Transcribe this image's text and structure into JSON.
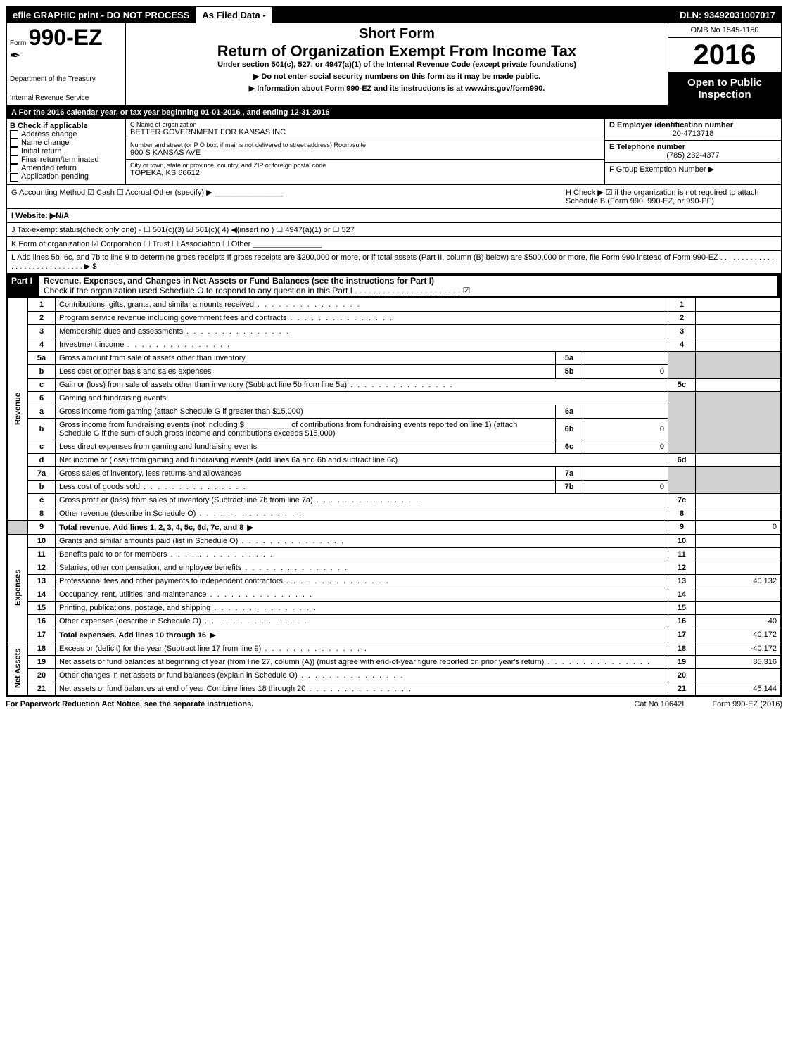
{
  "top_strip": {
    "left": "efile GRAPHIC print - DO NOT PROCESS",
    "mid": "As Filed Data -",
    "right": "DLN: 93492031007017"
  },
  "header": {
    "form_prefix": "Form",
    "form_number": "990-EZ",
    "dept1": "Department of the Treasury",
    "dept2": "Internal Revenue Service",
    "short_form": "Short Form",
    "main_title": "Return of Organization Exempt From Income Tax",
    "sub": "Under section 501(c), 527, or 4947(a)(1) of the Internal Revenue Code (except private foundations)",
    "sub2": "▶ Do not enter social security numbers on this form as it may be made public.",
    "sub3": "▶ Information about Form 990-EZ and its instructions is at www.irs.gov/form990.",
    "omb": "OMB No 1545-1150",
    "year": "2016",
    "open1": "Open to Public",
    "open2": "Inspection"
  },
  "line_a": "A  For the 2016 calendar year, or tax year beginning 01-01-2016       , and ending 12-31-2016",
  "section_b": {
    "title": "B  Check if applicable",
    "items": [
      "Address change",
      "Name change",
      "Initial return",
      "Final return/terminated",
      "Amended return",
      "Application pending"
    ]
  },
  "section_c": {
    "c_label": "C Name of organization",
    "c_val": "BETTER GOVERNMENT FOR KANSAS INC",
    "addr_label": "Number and street (or P O box, if mail is not delivered to street address)  Room/suite",
    "addr_val": "900 S KANSAS AVE",
    "city_label": "City or town, state or province, country, and ZIP or foreign postal code",
    "city_val": "TOPEKA, KS  66612"
  },
  "section_d": {
    "d_label": "D Employer identification number",
    "d_val": "20-4713718",
    "e_label": "E Telephone number",
    "e_val": "(785) 232-4377",
    "f_label": "F Group Exemption Number  ▶"
  },
  "row_g": {
    "g": "G Accounting Method    ☑ Cash   ☐ Accrual   Other (specify) ▶ ________________",
    "h": "H  Check ▶  ☑  if the organization is not required to attach Schedule B (Form 990, 990-EZ, or 990-PF)"
  },
  "row_i": "I Website: ▶N/A",
  "row_j": "J Tax-exempt status(check only one) - ☐ 501(c)(3) ☑ 501(c)( 4) ◀(insert no ) ☐ 4947(a)(1) or ☐ 527",
  "row_k": "K Form of organization    ☑ Corporation   ☐ Trust   ☐ Association   ☐ Other ________________",
  "row_l": "L Add lines 5b, 6c, and 7b to line 9 to determine gross receipts  If gross receipts are $200,000 or more, or if total assets (Part II, column (B) below) are $500,000 or more, file Form 990 instead of Form 990-EZ . . . . . . . . . . . . . . . . . . . . . . . . . . . . . . ▶ $",
  "part1": {
    "num": "Part I",
    "title": "Revenue, Expenses, and Changes in Net Assets or Fund Balances (see the instructions for Part I)",
    "check": "Check if the organization used Schedule O to respond to any question in this Part I . . . . . . . . . . . . . . . . . . . . . . . ☑"
  },
  "side_labels": {
    "revenue": "Revenue",
    "expenses": "Expenses",
    "net": "Net Assets"
  },
  "lines": {
    "1": {
      "n": "1",
      "d": "Contributions, gifts, grants, and similar amounts received",
      "box": "1",
      "val": ""
    },
    "2": {
      "n": "2",
      "d": "Program service revenue including government fees and contracts",
      "box": "2",
      "val": ""
    },
    "3": {
      "n": "3",
      "d": "Membership dues and assessments",
      "box": "3",
      "val": ""
    },
    "4": {
      "n": "4",
      "d": "Investment income",
      "box": "4",
      "val": ""
    },
    "5a": {
      "n": "5a",
      "d": "Gross amount from sale of assets other than inventory",
      "mbox": "5a",
      "mval": ""
    },
    "5b": {
      "n": "b",
      "d": "Less  cost or other basis and sales expenses",
      "mbox": "5b",
      "mval": "0"
    },
    "5c": {
      "n": "c",
      "d": "Gain or (loss) from sale of assets other than inventory (Subtract line 5b from line 5a)",
      "box": "5c",
      "val": ""
    },
    "6": {
      "n": "6",
      "d": "Gaming and fundraising events"
    },
    "6a": {
      "n": "a",
      "d": "Gross income from gaming (attach Schedule G if greater than $15,000)",
      "mbox": "6a",
      "mval": ""
    },
    "6b": {
      "n": "b",
      "d": "Gross income from fundraising events (not including $ __________ of contributions from fundraising events reported on line 1) (attach Schedule G if the sum of such gross income and contributions exceeds $15,000)",
      "mbox": "6b",
      "mval": "0"
    },
    "6c": {
      "n": "c",
      "d": "Less  direct expenses from gaming and fundraising events",
      "mbox": "6c",
      "mval": "0"
    },
    "6d": {
      "n": "d",
      "d": "Net income or (loss) from gaming and fundraising events (add lines 6a and 6b and subtract line 6c)",
      "box": "6d",
      "val": ""
    },
    "7a": {
      "n": "7a",
      "d": "Gross sales of inventory, less returns and allowances",
      "mbox": "7a",
      "mval": ""
    },
    "7b": {
      "n": "b",
      "d": "Less  cost of goods sold",
      "mbox": "7b",
      "mval": "0"
    },
    "7c": {
      "n": "c",
      "d": "Gross profit or (loss) from sales of inventory (Subtract line 7b from line 7a)",
      "box": "7c",
      "val": ""
    },
    "8": {
      "n": "8",
      "d": "Other revenue (describe in Schedule O)",
      "box": "8",
      "val": ""
    },
    "9": {
      "n": "9",
      "d": "Total revenue. Add lines 1, 2, 3, 4, 5c, 6d, 7c, and 8",
      "box": "9",
      "val": "0",
      "bold": true
    },
    "10": {
      "n": "10",
      "d": "Grants and similar amounts paid (list in Schedule O)",
      "box": "10",
      "val": ""
    },
    "11": {
      "n": "11",
      "d": "Benefits paid to or for members",
      "box": "11",
      "val": ""
    },
    "12": {
      "n": "12",
      "d": "Salaries, other compensation, and employee benefits",
      "box": "12",
      "val": ""
    },
    "13": {
      "n": "13",
      "d": "Professional fees and other payments to independent contractors",
      "box": "13",
      "val": "40,132"
    },
    "14": {
      "n": "14",
      "d": "Occupancy, rent, utilities, and maintenance",
      "box": "14",
      "val": ""
    },
    "15": {
      "n": "15",
      "d": "Printing, publications, postage, and shipping",
      "box": "15",
      "val": ""
    },
    "16": {
      "n": "16",
      "d": "Other expenses (describe in Schedule O)",
      "box": "16",
      "val": "40"
    },
    "17": {
      "n": "17",
      "d": "Total expenses. Add lines 10 through 16",
      "box": "17",
      "val": "40,172",
      "bold": true
    },
    "18": {
      "n": "18",
      "d": "Excess or (deficit) for the year (Subtract line 17 from line 9)",
      "box": "18",
      "val": "-40,172"
    },
    "19": {
      "n": "19",
      "d": "Net assets or fund balances at beginning of year (from line 27, column (A)) (must agree with end-of-year figure reported on prior year's return)",
      "box": "19",
      "val": "85,316"
    },
    "20": {
      "n": "20",
      "d": "Other changes in net assets or fund balances (explain in Schedule O)",
      "box": "20",
      "val": ""
    },
    "21": {
      "n": "21",
      "d": "Net assets or fund balances at end of year  Combine lines 18 through 20",
      "box": "21",
      "val": "45,144"
    }
  },
  "footer": {
    "l": "For Paperwork Reduction Act Notice, see the separate instructions.",
    "m": "Cat No  10642I",
    "r": "Form 990-EZ (2016)"
  }
}
